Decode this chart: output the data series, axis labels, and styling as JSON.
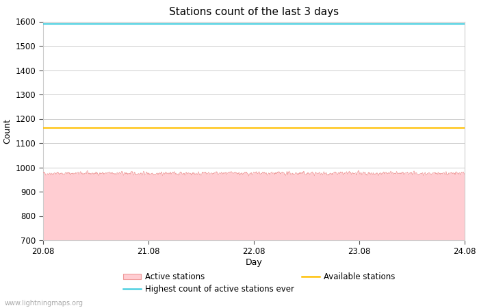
{
  "title": "Stations count of the last 3 days",
  "xlabel": "Day",
  "ylabel": "Count",
  "ylim": [
    700,
    1600
  ],
  "yticks": [
    700,
    800,
    900,
    1000,
    1100,
    1200,
    1300,
    1400,
    1500,
    1600
  ],
  "xlim_start": 20.08,
  "xlim_end": 24.08,
  "xticks": [
    20.08,
    21.08,
    22.08,
    23.08,
    24.08
  ],
  "highest_count_ever": 1590,
  "highest_color": "#4dd0e1",
  "available_stations": 1163,
  "available_color": "#FFC107",
  "active_fill_color": "#FFCDD2",
  "active_line_color": "#ef9a9a",
  "active_mean": 975,
  "active_noise": 8,
  "watermark": "www.lightningmaps.org",
  "legend_fontsize": 8.5,
  "title_fontsize": 11,
  "background_color": "#ffffff",
  "grid_color": "#cccccc"
}
